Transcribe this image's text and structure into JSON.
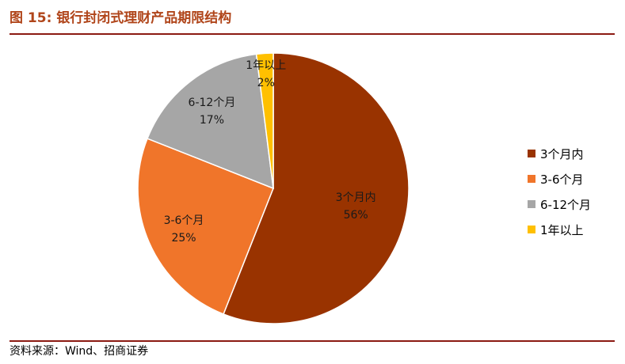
{
  "header": {
    "title": "图 15:  银行封闭式理财产品期限结构"
  },
  "footer": {
    "source": "资料来源：Wind、招商证券"
  },
  "colors": {
    "title": "#b0451a",
    "rule": "#8b1a12"
  },
  "chart_data": {
    "type": "pie",
    "slices": [
      {
        "name": "3个月内",
        "pct_label": "56%",
        "value": 56,
        "color": "#993300"
      },
      {
        "name": "3-6个月",
        "pct_label": "25%",
        "value": 25,
        "color": "#f0752a"
      },
      {
        "name": "6-12个月",
        "pct_label": "17%",
        "value": 17,
        "color": "#a6a6a6"
      },
      {
        "name": "1年以上",
        "pct_label": "2%",
        "value": 2,
        "color": "#ffc000"
      }
    ],
    "legend": [
      "3个月内",
      "3-6个月",
      "6-12个月",
      "1年以上"
    ],
    "legend_position": "right"
  }
}
